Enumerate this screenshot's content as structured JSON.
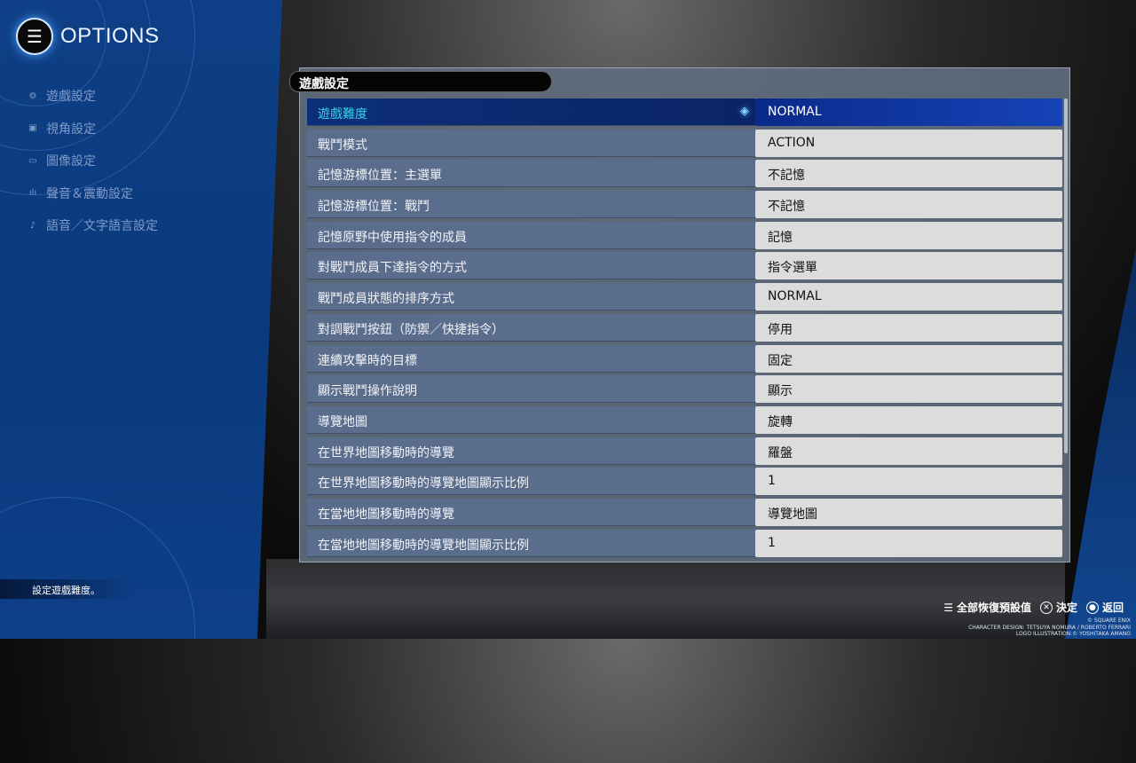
{
  "header": {
    "title": "OPTIONS"
  },
  "sidebar": {
    "items": [
      {
        "label": "遊戲設定",
        "icon": "gear-icon",
        "glyph": "⚙"
      },
      {
        "label": "視角設定",
        "icon": "camera-icon",
        "glyph": "▣"
      },
      {
        "label": "圖像設定",
        "icon": "image-icon",
        "glyph": "▭"
      },
      {
        "label": "聲音＆震動設定",
        "icon": "sound-icon",
        "glyph": "ılı"
      },
      {
        "label": "語音／文字語言設定",
        "icon": "voice-icon",
        "glyph": "♪"
      }
    ]
  },
  "main": {
    "tab": "遊戲設定",
    "rows": [
      {
        "label": "遊戲難度",
        "value": "NORMAL"
      },
      {
        "label": "戰鬥模式",
        "value": "ACTION"
      },
      {
        "label": "記憶游標位置：主選單",
        "value": "不記憶"
      },
      {
        "label": "記憶游標位置：戰鬥",
        "value": "不記憶"
      },
      {
        "label": "記憶原野中使用指令的成員",
        "value": "記憶"
      },
      {
        "label": "對戰鬥成員下達指令的方式",
        "value": "指令選單"
      },
      {
        "label": "戰鬥成員狀態的排序方式",
        "value": "NORMAL"
      },
      {
        "label": "對調戰鬥按鈕（防禦／快捷指令）",
        "value": "停用"
      },
      {
        "label": "連續攻擊時的目標",
        "value": "固定"
      },
      {
        "label": "顯示戰鬥操作說明",
        "value": "顯示"
      },
      {
        "label": "導覽地圖",
        "value": "旋轉"
      },
      {
        "label": "在世界地圖移動時的導覽",
        "value": "羅盤"
      },
      {
        "label": "在世界地圖移動時的導覽地圖顯示比例",
        "value": "1"
      },
      {
        "label": "在當地地圖移動時的導覽",
        "value": "導覽地圖"
      },
      {
        "label": "在當地地圖移動時的導覽地圖顯示比例",
        "value": "1"
      }
    ]
  },
  "hint": "設定遊戲難度。",
  "footer": {
    "reset": "全部恢復預設值",
    "confirm": "決定",
    "back": "返回"
  },
  "copyright": [
    "© SQUARE ENIX",
    "CHARACTER DESIGN: TETSUYA NOMURA / ROBERTO FERRARI",
    "LOGO ILLUSTRATION:© YOSHITAKA AMANO"
  ]
}
